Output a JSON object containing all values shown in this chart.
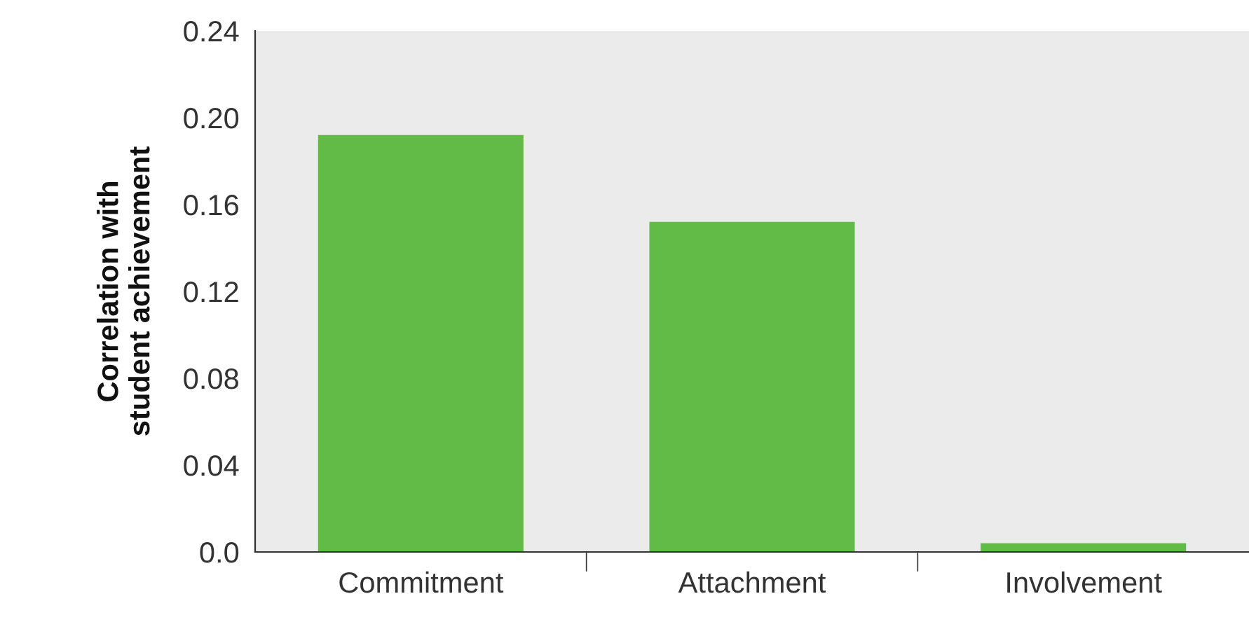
{
  "chart_data": {
    "type": "bar",
    "ylabel": "Correlation with\nstudent achievement",
    "categories": [
      "Commitment",
      "Attachment",
      "Involvement"
    ],
    "values": [
      0.192,
      0.152,
      0.004
    ],
    "color": "#62bb47",
    "ylim": [
      0,
      0.24
    ],
    "yticks": [
      {
        "value": 0,
        "label": "0.0"
      },
      0.04,
      0.08,
      0.12,
      0.16,
      {
        "value": 0.2,
        "label": "0.20"
      },
      0.24
    ],
    "grid": false
  }
}
